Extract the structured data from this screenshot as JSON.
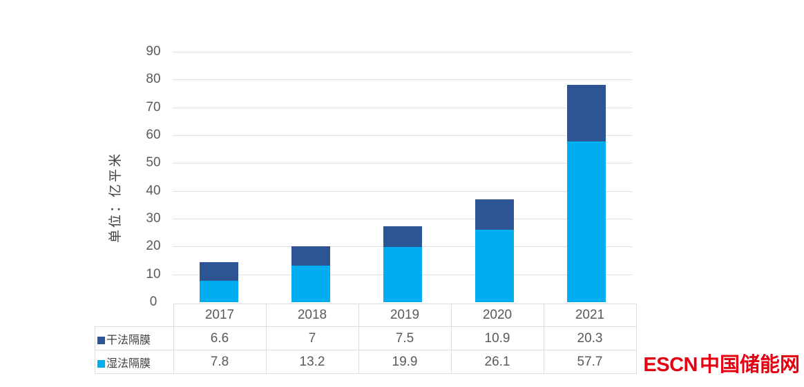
{
  "chart_data": {
    "type": "bar",
    "stacked": true,
    "categories": [
      "2017",
      "2018",
      "2019",
      "2020",
      "2021"
    ],
    "series": [
      {
        "name": "干法隔膜",
        "color": "#2d5493",
        "values": [
          6.6,
          7,
          7.5,
          10.9,
          20.3
        ]
      },
      {
        "name": "湿法隔膜",
        "color": "#00aeef",
        "values": [
          7.8,
          13.2,
          19.9,
          26.1,
          57.7
        ]
      }
    ],
    "ylabel": "单位：亿平米",
    "ylim": [
      0,
      90
    ],
    "yticks": [
      0,
      10,
      20,
      30,
      40,
      50,
      60,
      70,
      80,
      90
    ],
    "grid": true,
    "gridline_color": "#e0e0e0",
    "table_border_color": "#dadde2",
    "text_color": "#595959",
    "legend_position": "table-left"
  },
  "watermark": {
    "text_latin": "ESCN",
    "text_cjk": "中国储能网",
    "color": "#e60012"
  }
}
